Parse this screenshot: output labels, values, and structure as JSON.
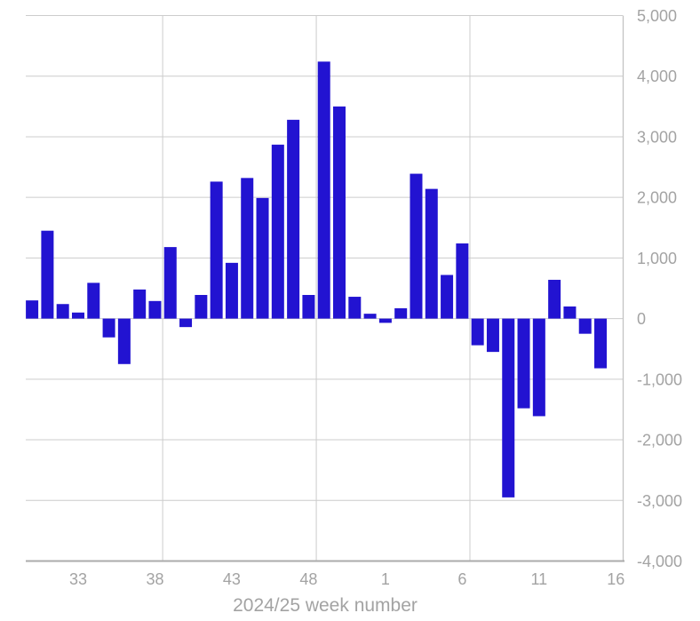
{
  "chart_data": {
    "type": "bar",
    "title": "",
    "xlabel": "2024/25 week number",
    "ylabel": "",
    "categories": [
      "30",
      "31",
      "32",
      "33",
      "34",
      "35",
      "36",
      "37",
      "38",
      "39",
      "40",
      "41",
      "42",
      "43",
      "44",
      "45",
      "46",
      "47",
      "48",
      "49",
      "50",
      "51",
      "52",
      "1",
      "2",
      "3",
      "4",
      "5",
      "6",
      "7",
      "8",
      "9",
      "10",
      "11",
      "12",
      "13",
      "14",
      "15",
      "16"
    ],
    "values": [
      300,
      1450,
      240,
      100,
      590,
      -310,
      -750,
      480,
      290,
      1180,
      -140,
      390,
      2260,
      920,
      2320,
      1990,
      2870,
      3280,
      390,
      4240,
      3500,
      360,
      80,
      -70,
      170,
      2390,
      2140,
      720,
      1240,
      -440,
      -550,
      -2950,
      -1480,
      -1610,
      640,
      200,
      -250,
      -820,
      null
    ],
    "x_tick_labels": [
      "33",
      "38",
      "43",
      "48",
      "1",
      "6",
      "11",
      "16"
    ],
    "y_ticks": [
      5000,
      4000,
      3000,
      2000,
      1000,
      0,
      -1000,
      -2000,
      -3000,
      -4000
    ],
    "y_tick_labels": [
      "5,000",
      "4,000",
      "3,000",
      "2,000",
      "1,000",
      "0",
      "-1,000",
      "-2,000",
      "-3,000",
      "-4,000"
    ],
    "ylim": [
      -4000,
      5000
    ],
    "grid": true,
    "legend": "none",
    "bar_color": "#2213d1",
    "gridline_color": "#cccccc",
    "axis_line_color": "#ababab",
    "right_axis_color": "#c4c4c4",
    "axis_label_color": "#a3a3a3"
  }
}
